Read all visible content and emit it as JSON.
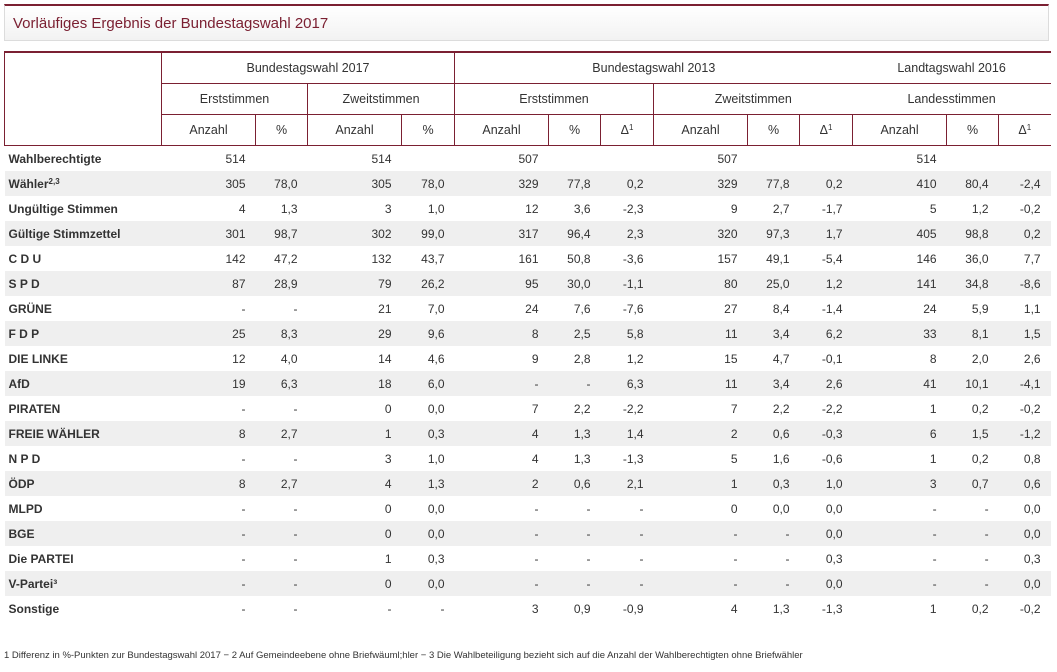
{
  "title": "Vorläufiges Ergebnis der Bundestagswahl 2017",
  "header": {
    "group1": "Bundestagswahl 2017",
    "group2": "Bundestagswahl 2013",
    "group3": "Landtagswahl 2016",
    "erst": "Erststimmen",
    "zweit": "Zweitstimmen",
    "landes": "Landesstimmen",
    "anzahl": "Anzahl",
    "pct": "%",
    "delta": "Δ",
    "delta_sup": "1"
  },
  "rows": [
    {
      "label": "Wahlberechtigte",
      "sup": "",
      "v": [
        "514",
        "",
        "514",
        "",
        "507",
        "",
        "",
        "507",
        "",
        "",
        "514",
        "",
        ""
      ]
    },
    {
      "label": "Wähler",
      "sup": "2,3",
      "v": [
        "305",
        "78,0",
        "305",
        "78,0",
        "329",
        "77,8",
        "0,2",
        "329",
        "77,8",
        "0,2",
        "410",
        "80,4",
        "-2,4"
      ]
    },
    {
      "label": "Ungültige Stimmen",
      "sup": "",
      "v": [
        "4",
        "1,3",
        "3",
        "1,0",
        "12",
        "3,6",
        "-2,3",
        "9",
        "2,7",
        "-1,7",
        "5",
        "1,2",
        "-0,2"
      ]
    },
    {
      "label": "Gültige Stimmzettel",
      "sup": "",
      "v": [
        "301",
        "98,7",
        "302",
        "99,0",
        "317",
        "96,4",
        "2,3",
        "320",
        "97,3",
        "1,7",
        "405",
        "98,8",
        "0,2"
      ]
    },
    {
      "label": "C D U",
      "sup": "",
      "v": [
        "142",
        "47,2",
        "132",
        "43,7",
        "161",
        "50,8",
        "-3,6",
        "157",
        "49,1",
        "-5,4",
        "146",
        "36,0",
        "7,7"
      ]
    },
    {
      "label": "S P D",
      "sup": "",
      "v": [
        "87",
        "28,9",
        "79",
        "26,2",
        "95",
        "30,0",
        "-1,1",
        "80",
        "25,0",
        "1,2",
        "141",
        "34,8",
        "-8,6"
      ]
    },
    {
      "label": "GRÜNE",
      "sup": "",
      "v": [
        "-",
        "-",
        "21",
        "7,0",
        "24",
        "7,6",
        "-7,6",
        "27",
        "8,4",
        "-1,4",
        "24",
        "5,9",
        "1,1"
      ]
    },
    {
      "label": "F D P",
      "sup": "",
      "v": [
        "25",
        "8,3",
        "29",
        "9,6",
        "8",
        "2,5",
        "5,8",
        "11",
        "3,4",
        "6,2",
        "33",
        "8,1",
        "1,5"
      ]
    },
    {
      "label": "DIE LINKE",
      "sup": "",
      "v": [
        "12",
        "4,0",
        "14",
        "4,6",
        "9",
        "2,8",
        "1,2",
        "15",
        "4,7",
        "-0,1",
        "8",
        "2,0",
        "2,6"
      ]
    },
    {
      "label": "AfD",
      "sup": "",
      "v": [
        "19",
        "6,3",
        "18",
        "6,0",
        "-",
        "-",
        "6,3",
        "11",
        "3,4",
        "2,6",
        "41",
        "10,1",
        "-4,1"
      ]
    },
    {
      "label": "PIRATEN",
      "sup": "",
      "v": [
        "-",
        "-",
        "0",
        "0,0",
        "7",
        "2,2",
        "-2,2",
        "7",
        "2,2",
        "-2,2",
        "1",
        "0,2",
        "-0,2"
      ]
    },
    {
      "label": "FREIE WÄHLER",
      "sup": "",
      "v": [
        "8",
        "2,7",
        "1",
        "0,3",
        "4",
        "1,3",
        "1,4",
        "2",
        "0,6",
        "-0,3",
        "6",
        "1,5",
        "-1,2"
      ]
    },
    {
      "label": "N P D",
      "sup": "",
      "v": [
        "-",
        "-",
        "3",
        "1,0",
        "4",
        "1,3",
        "-1,3",
        "5",
        "1,6",
        "-0,6",
        "1",
        "0,2",
        "0,8"
      ]
    },
    {
      "label": "ÖDP",
      "sup": "",
      "v": [
        "8",
        "2,7",
        "4",
        "1,3",
        "2",
        "0,6",
        "2,1",
        "1",
        "0,3",
        "1,0",
        "3",
        "0,7",
        "0,6"
      ]
    },
    {
      "label": "MLPD",
      "sup": "",
      "v": [
        "-",
        "-",
        "0",
        "0,0",
        "-",
        "-",
        "-",
        "0",
        "0,0",
        "0,0",
        "-",
        "-",
        "0,0"
      ]
    },
    {
      "label": "BGE",
      "sup": "",
      "v": [
        "-",
        "-",
        "0",
        "0,0",
        "-",
        "-",
        "-",
        "-",
        "-",
        "0,0",
        "-",
        "-",
        "0,0"
      ]
    },
    {
      "label": "Die PARTEI",
      "sup": "",
      "v": [
        "-",
        "-",
        "1",
        "0,3",
        "-",
        "-",
        "-",
        "-",
        "-",
        "0,3",
        "-",
        "-",
        "0,3"
      ]
    },
    {
      "label": "V-Partei³",
      "sup": "",
      "v": [
        "-",
        "-",
        "0",
        "0,0",
        "-",
        "-",
        "-",
        "-",
        "-",
        "0,0",
        "-",
        "-",
        "0,0"
      ]
    },
    {
      "label": "Sonstige",
      "sup": "",
      "v": [
        "-",
        "-",
        "-",
        "-",
        "3",
        "0,9",
        "-0,9",
        "4",
        "1,3",
        "-1,3",
        "1",
        "0,2",
        "-0,2"
      ]
    }
  ],
  "footnote": "1 Differenz in %-Punkten zur Bundestagswahl 2017 − 2 Auf Gemeindeebene ohne Briefwäuml;hler − 3 Die Wahlbeteiligung bezieht sich auf die Anzahl der Wahlberechtigten ohne Briefwähler",
  "colors": {
    "accent": "#7b2032",
    "stripe": "#efefef"
  }
}
